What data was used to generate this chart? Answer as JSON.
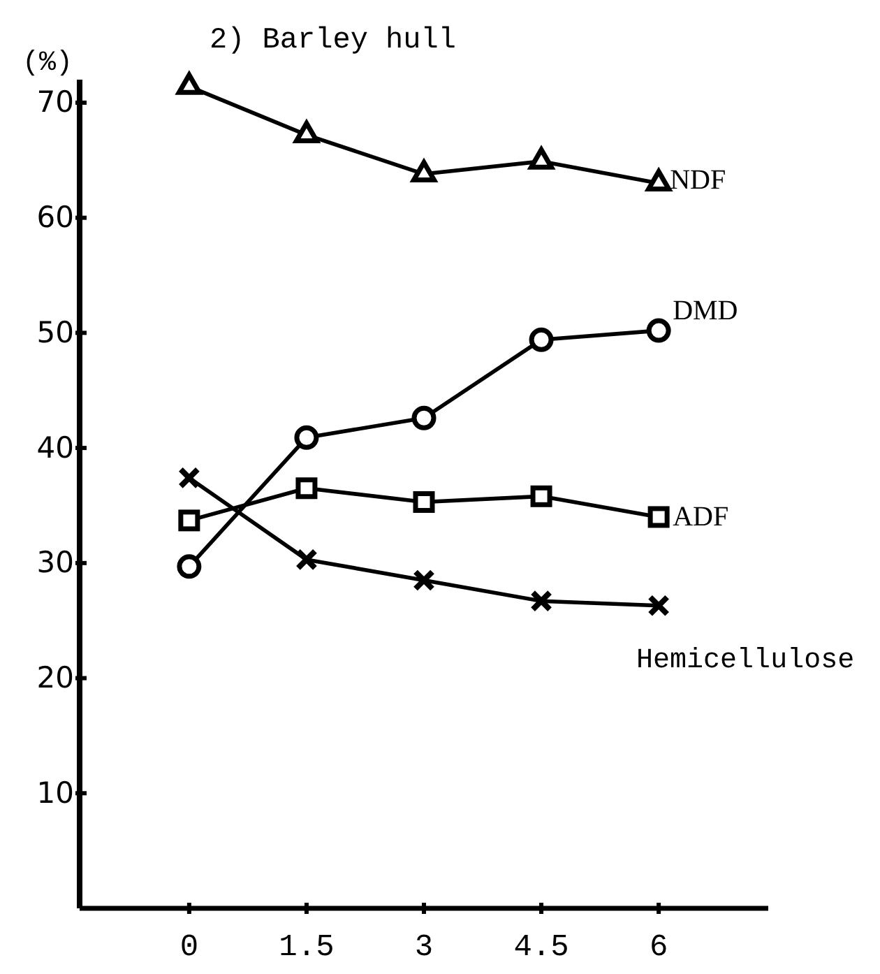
{
  "chart_data": {
    "type": "line",
    "title": "2) Barley hull",
    "ylabel": "(%)",
    "x": [
      0,
      1.5,
      3,
      4.5,
      6
    ],
    "xlim": [
      -1.4,
      7.4
    ],
    "xticks": [
      0,
      1.5,
      3,
      4.5,
      6
    ],
    "ylim": [
      0,
      72
    ],
    "yticks": [
      10,
      20,
      30,
      40,
      50,
      60,
      70
    ],
    "grid": false,
    "legend": false,
    "line_style": "solid",
    "series": [
      {
        "name": "NDF",
        "color": "#000000",
        "marker": "triangle",
        "values": [
          71.4,
          67.2,
          63.8,
          64.9,
          63.0
        ]
      },
      {
        "name": "DMD",
        "color": "#000000",
        "marker": "circle",
        "values": [
          29.7,
          40.9,
          42.6,
          49.4,
          50.2
        ]
      },
      {
        "name": "ADF",
        "color": "#000000",
        "marker": "square",
        "values": [
          33.7,
          36.5,
          35.3,
          35.8,
          34.0
        ]
      },
      {
        "name": "Hemicellulose",
        "color": "#000000",
        "marker": "cross",
        "values": [
          37.4,
          30.3,
          28.5,
          26.7,
          26.3
        ]
      }
    ]
  }
}
